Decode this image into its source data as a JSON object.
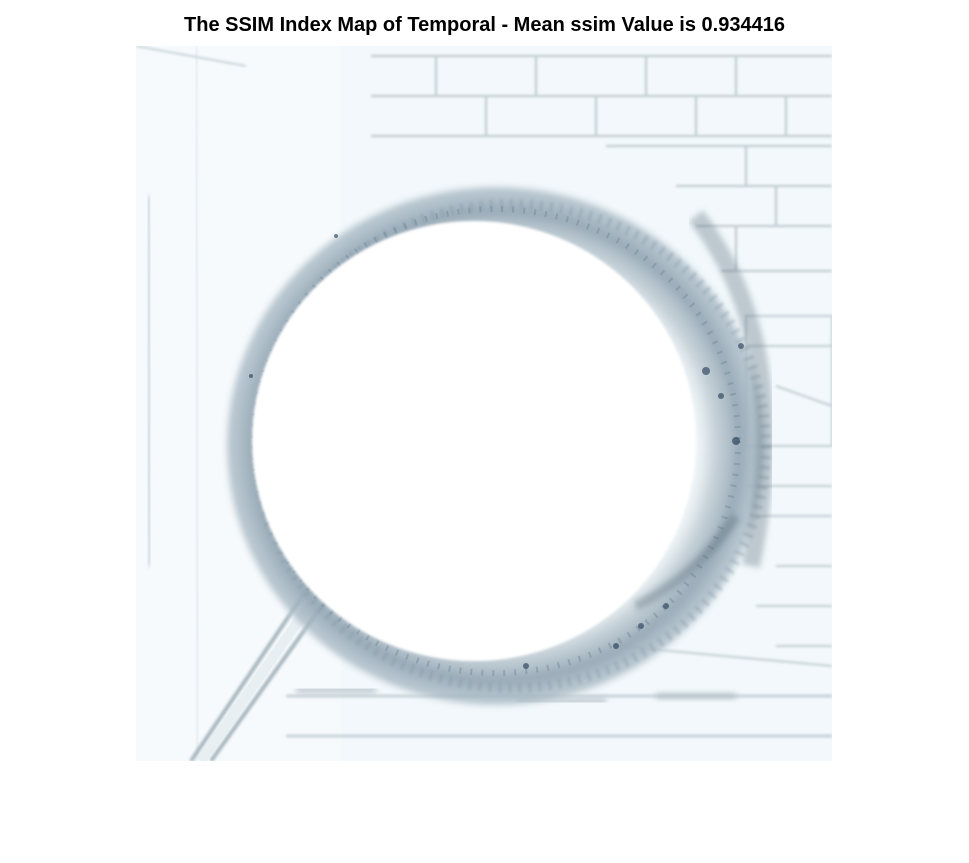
{
  "figure": {
    "title": "The SSIM Index Map of Temporal - Mean ssim Value is 0.934416"
  },
  "image": {
    "description_icon": "ssim-index-map-image",
    "colormap": [
      "#ffffff",
      "#e6f1f7",
      "#aebfc9",
      "#7a93a6",
      "#1a2f4a"
    ]
  }
}
